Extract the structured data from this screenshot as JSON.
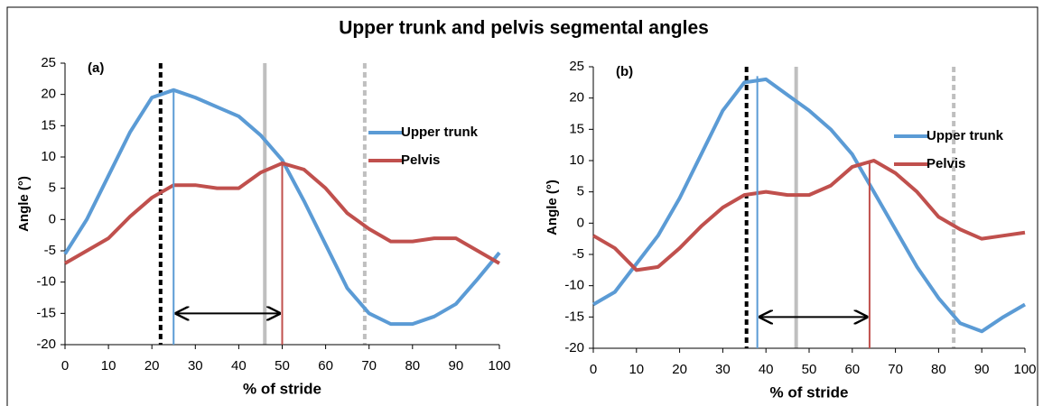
{
  "title": "Upper trunk and pelvis segmental angles",
  "chart_data": [
    {
      "type": "line",
      "panel_label": "(a)",
      "xlabel": "% of stride",
      "ylabel": "Angle (°)",
      "x": [
        0,
        5,
        10,
        15,
        20,
        25,
        30,
        35,
        40,
        45,
        50,
        55,
        60,
        65,
        70,
        75,
        80,
        85,
        90,
        95,
        100
      ],
      "xlim": [
        0,
        100
      ],
      "xticks": [
        0,
        10,
        20,
        30,
        40,
        50,
        60,
        70,
        80,
        90,
        100
      ],
      "ylim": [
        -20,
        25
      ],
      "yticks": [
        -20,
        -15,
        -10,
        -5,
        0,
        5,
        10,
        15,
        20,
        25
      ],
      "legend": "right",
      "series": [
        {
          "name": "Upper trunk",
          "color": "#5b9bd5",
          "values": [
            -5.5,
            0,
            7,
            14,
            19.5,
            20.7,
            19.5,
            18,
            16.5,
            13.5,
            9.5,
            3,
            -4,
            -11,
            -15,
            -16.7,
            -16.7,
            -15.5,
            -13.5,
            -9.5,
            -5.3
          ]
        },
        {
          "name": "Pelvis",
          "color": "#c0504d",
          "values": [
            -7,
            -5,
            -3,
            0.5,
            3.5,
            5.5,
            5.5,
            5,
            5,
            7.5,
            9,
            8,
            5,
            1,
            -1.5,
            -3.5,
            -3.5,
            -3,
            -3,
            -5,
            -7
          ]
        }
      ],
      "vlines": [
        {
          "x": 22,
          "color": "#000000",
          "style": "dashed"
        },
        {
          "x": 46,
          "color": "#bfbfbf",
          "style": "solid"
        },
        {
          "x": 69,
          "color": "#bfbfbf",
          "style": "dashed"
        }
      ],
      "peak_lines": [
        {
          "x": 25,
          "y": 20.7,
          "color": "#5b9bd5"
        },
        {
          "x": 50,
          "y": 9,
          "color": "#c0504d"
        }
      ],
      "arrow": {
        "x": [
          25,
          50
        ],
        "y": -15
      }
    },
    {
      "type": "line",
      "panel_label": "(b)",
      "xlabel": "% of stride",
      "ylabel": "Angle (°)",
      "x": [
        0,
        5,
        10,
        15,
        20,
        25,
        30,
        35,
        40,
        45,
        50,
        55,
        60,
        65,
        70,
        75,
        80,
        85,
        90,
        95,
        100
      ],
      "xlim": [
        0,
        100
      ],
      "xticks": [
        0,
        10,
        20,
        30,
        40,
        50,
        60,
        70,
        80,
        90,
        100
      ],
      "ylim": [
        -20,
        25
      ],
      "yticks": [
        -20,
        -15,
        -10,
        -5,
        0,
        5,
        10,
        15,
        20,
        25
      ],
      "legend": "right",
      "series": [
        {
          "name": "Upper trunk",
          "color": "#5b9bd5",
          "values": [
            -13,
            -11,
            -6.5,
            -2,
            4,
            11,
            18,
            22.5,
            23,
            20.5,
            18,
            15,
            11,
            5,
            -1,
            -7,
            -12,
            -16,
            -17.3,
            -15,
            -13
          ]
        },
        {
          "name": "Pelvis",
          "color": "#c0504d",
          "values": [
            -2,
            -4,
            -7.5,
            -7,
            -4,
            -0.5,
            2.5,
            4.5,
            5,
            4.5,
            4.5,
            6,
            9,
            10,
            8,
            5,
            1,
            -1,
            -2.5,
            -2,
            -1.5
          ]
        }
      ],
      "vlines": [
        {
          "x": 35.5,
          "color": "#000000",
          "style": "dashed"
        },
        {
          "x": 47,
          "color": "#bfbfbf",
          "style": "solid"
        },
        {
          "x": 83.5,
          "color": "#bfbfbf",
          "style": "dashed"
        }
      ],
      "peak_lines": [
        {
          "x": 38,
          "y": 23.5,
          "color": "#5b9bd5"
        },
        {
          "x": 64,
          "y": 10,
          "color": "#c0504d"
        }
      ],
      "arrow": {
        "x": [
          38,
          64
        ],
        "y": -15
      }
    }
  ]
}
